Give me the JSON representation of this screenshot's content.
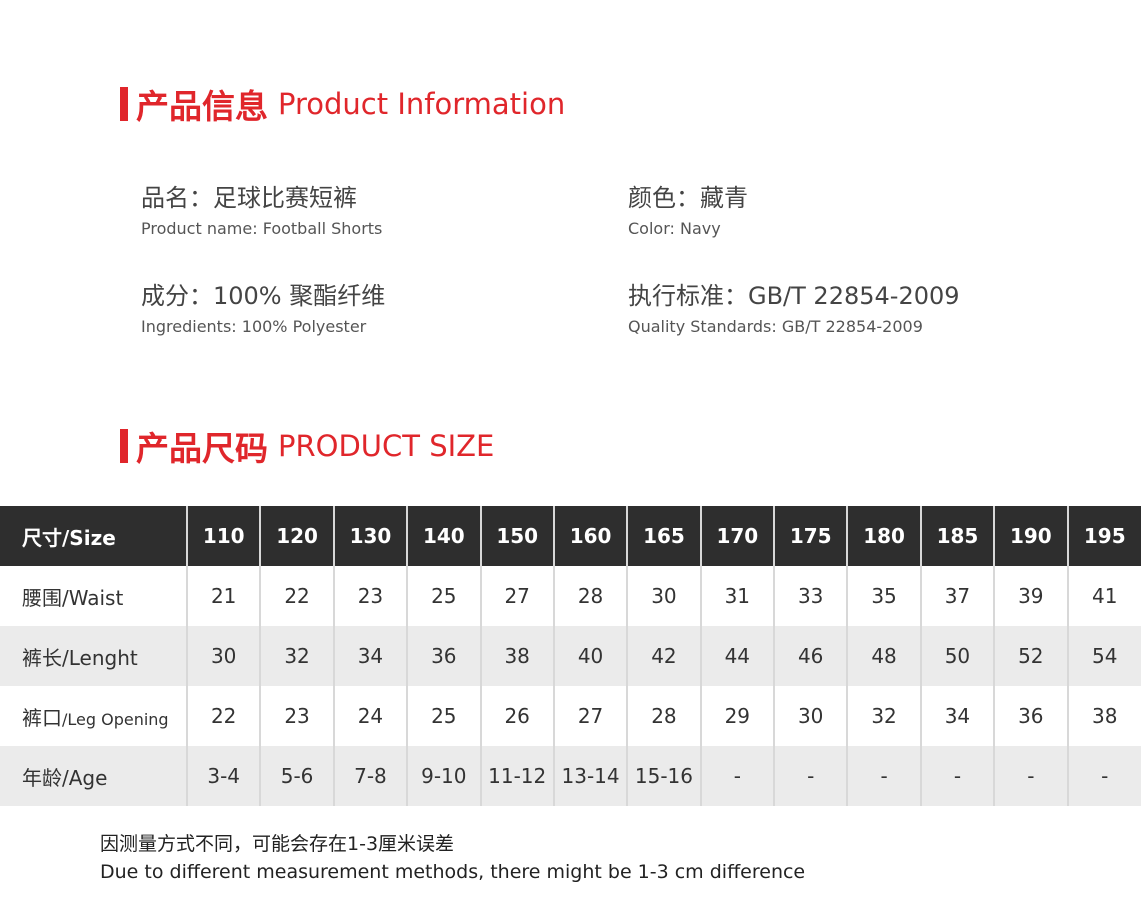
{
  "info_section": {
    "title_cn": "产品信息",
    "title_en": "Product Information"
  },
  "info": [
    {
      "cn": "品名：足球比赛短裤",
      "en": "Product name: Football Shorts"
    },
    {
      "cn": "颜色：藏青",
      "en": "Color: Navy"
    },
    {
      "cn": "成分：100% 聚酯纤维",
      "en": "Ingredients: 100% Polyester"
    },
    {
      "cn": "执行标准：GB/T 22854-2009",
      "en": "Quality Standards: GB/T 22854-2009"
    }
  ],
  "size_section": {
    "title_cn": "产品尺码",
    "title_en": "PRODUCT SIZE"
  },
  "table": {
    "header": "尺寸/Size",
    "sizes": [
      "110",
      "120",
      "130",
      "140",
      "150",
      "160",
      "165",
      "170",
      "175",
      "180",
      "185",
      "190",
      "195"
    ],
    "rows": [
      {
        "label_cn": "腰围",
        "label_en": "/Waist",
        "values": [
          "21",
          "22",
          "23",
          "25",
          "27",
          "28",
          "30",
          "31",
          "33",
          "35",
          "37",
          "39",
          "41"
        ]
      },
      {
        "label_cn": "裤长",
        "label_en": "/Lenght",
        "values": [
          "30",
          "32",
          "34",
          "36",
          "38",
          "40",
          "42",
          "44",
          "46",
          "48",
          "50",
          "52",
          "54"
        ]
      },
      {
        "label_cn": "裤口",
        "label_en": "/Leg Opening",
        "values": [
          "22",
          "23",
          "24",
          "25",
          "26",
          "27",
          "28",
          "29",
          "30",
          "32",
          "34",
          "36",
          "38"
        ]
      },
      {
        "label_cn": "年龄",
        "label_en": "/Age",
        "values": [
          "3-4",
          "5-6",
          "7-8",
          "9-10",
          "11-12",
          "13-14",
          "15-16",
          "-",
          "-",
          "-",
          "-",
          "-",
          "-"
        ]
      }
    ]
  },
  "note": {
    "cn": "因测量方式不同，可能会存在1-3厘米误差",
    "en": "Due to different measurement methods, there might be 1-3 cm difference"
  },
  "colors": {
    "accent": "#e0262b",
    "header_bg": "#2e2e2e",
    "alt_row": "#ebebeb"
  }
}
